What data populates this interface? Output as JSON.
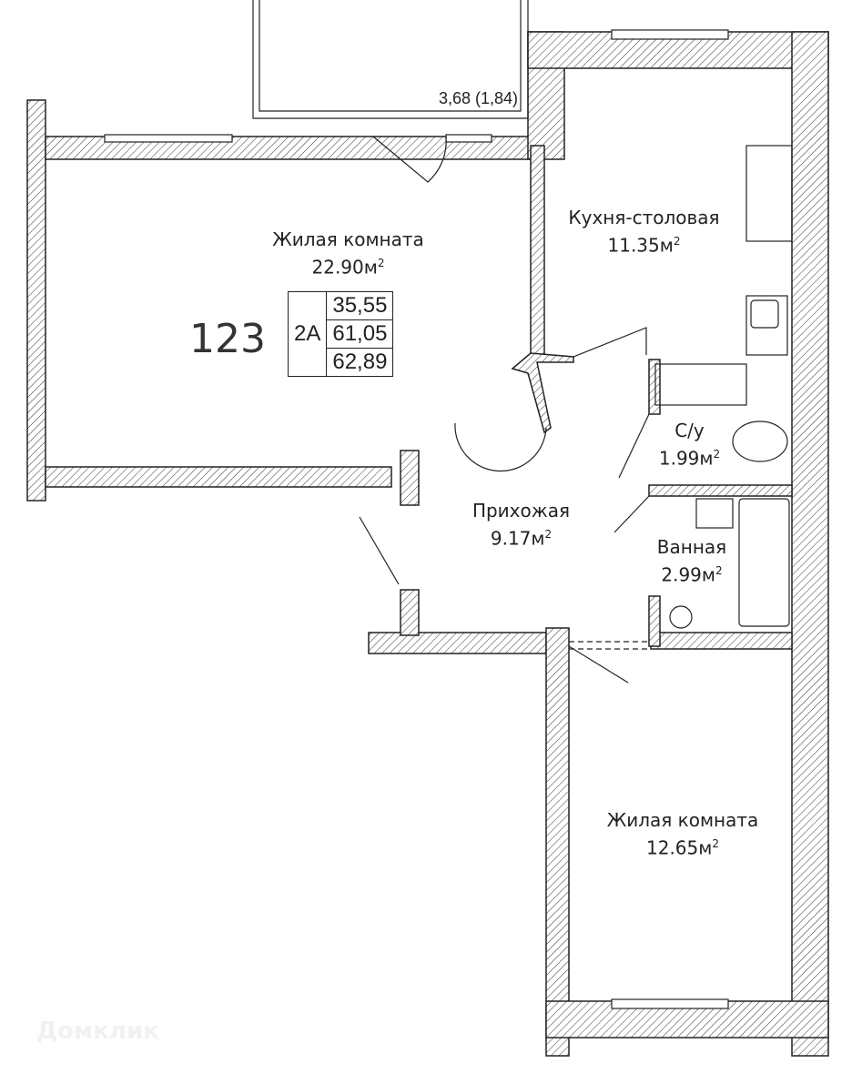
{
  "apartment": {
    "number": "123",
    "type": "2A",
    "areas": [
      "35,55",
      "61,05",
      "62,89"
    ]
  },
  "balcony": {
    "label": "3,68 (1,84)"
  },
  "rooms": [
    {
      "name": "Жилая комната",
      "area": "22.90м",
      "unit_sup": "2"
    },
    {
      "name": "Кухня-столовая",
      "area": "11.35м",
      "unit_sup": "2"
    },
    {
      "name": "С/у",
      "area": "1.99м",
      "unit_sup": "2"
    },
    {
      "name": "Прихожая",
      "area": "9.17м",
      "unit_sup": "2"
    },
    {
      "name": "Ванная",
      "area": "2.99м",
      "unit_sup": "2"
    },
    {
      "name": "Жилая комната",
      "area": "12.65м",
      "unit_sup": "2"
    }
  ],
  "watermark": "Домклик",
  "colors": {
    "wall_line": "#222222",
    "background": "#ffffff"
  }
}
